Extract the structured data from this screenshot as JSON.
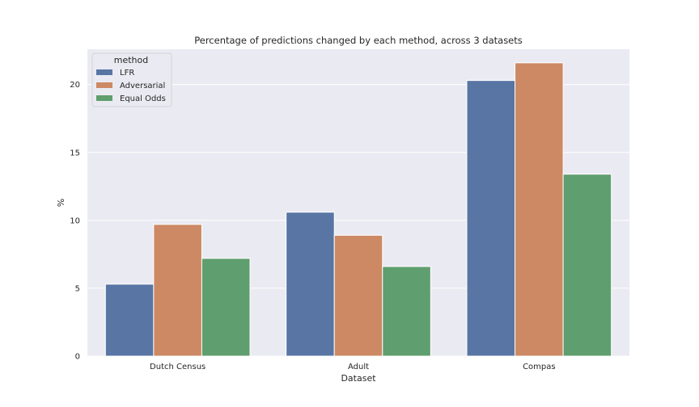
{
  "chart_data": {
    "type": "bar",
    "title": "Percentage of predictions changed by each method, across 3 datasets",
    "xlabel": "Dataset",
    "ylabel": "%",
    "categories": [
      "Dutch Census",
      "Adult",
      "Compas"
    ],
    "series": [
      {
        "name": "LFR",
        "values": [
          5.3,
          10.6,
          20.3
        ],
        "color": "#5875a4"
      },
      {
        "name": "Adversarial",
        "values": [
          9.7,
          8.9,
          21.6
        ],
        "color": "#cc8963"
      },
      {
        "name": "Equal Odds",
        "values": [
          7.2,
          6.6,
          13.4
        ],
        "color": "#5f9e6e"
      }
    ],
    "ylim": [
      0,
      22.6
    ],
    "yticks": [
      0,
      5,
      10,
      15,
      20
    ],
    "grid": true,
    "legend_title": "method",
    "legend_position": "top-left",
    "background": "#eaeaf2"
  }
}
